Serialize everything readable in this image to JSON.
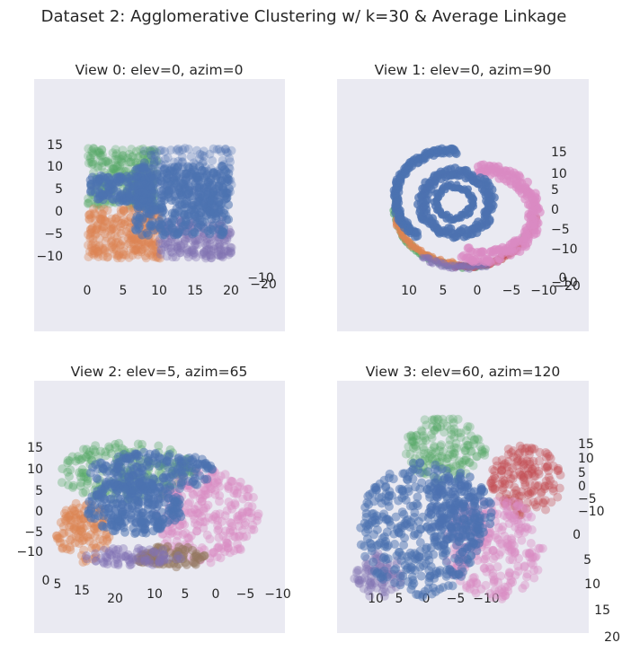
{
  "figure": {
    "title": "Dataset 2: Agglomerative Clustering w/ k=30 & Average Linkage"
  },
  "colors": {
    "panel_bg": "#eaeaf2",
    "text": "#262626",
    "cluster_blue": "#4c72b0",
    "cluster_orange": "#dd8452",
    "cluster_green": "#55a868",
    "cluster_red": "#c44e52",
    "cluster_purple": "#8172b3",
    "cluster_brown": "#937860",
    "cluster_pink": "#da8bc3"
  },
  "chart_data": [
    {
      "type": "scatter",
      "title": "View 0: elev=0, azim=0",
      "view": {
        "elev": 0,
        "azim": 0
      },
      "axis_tick_labels": {
        "vertical": [
          "15",
          "10",
          "5",
          "0",
          "−5",
          "−10"
        ],
        "horizontal": [
          "0",
          "5",
          "10",
          "15",
          "20"
        ],
        "depth": [
          "−10",
          "−20"
        ]
      }
    },
    {
      "type": "scatter",
      "title": "View 1: elev=0, azim=90",
      "view": {
        "elev": 0,
        "azim": 90
      },
      "axis_tick_labels": {
        "vertical": [
          "15",
          "10",
          "5",
          "0",
          "−5",
          "−10"
        ],
        "horizontal": [
          "10",
          "5",
          "0",
          "−5",
          "−10"
        ],
        "depth": [
          "0",
          "−10",
          "−20"
        ]
      }
    },
    {
      "type": "scatter",
      "title": "View 2: elev=5, azim=65",
      "view": {
        "elev": 5,
        "azim": 65
      },
      "axis_tick_labels": {
        "vertical": [
          "15",
          "10",
          "5",
          "0",
          "−5",
          "−10"
        ],
        "horizontal": [
          "10",
          "5",
          "0",
          "−5",
          "−10"
        ],
        "depth": [
          "0",
          "5",
          "15",
          "20"
        ]
      }
    },
    {
      "type": "scatter",
      "title": "View 3: elev=60, azim=120",
      "view": {
        "elev": 60,
        "azim": 120
      },
      "axis_tick_labels": {
        "vertical": [
          "15",
          "10",
          "5",
          "0",
          "−5",
          "−10"
        ],
        "horizontal": [
          "10",
          "5",
          "0",
          "−5",
          "−10"
        ],
        "depth": [
          "0",
          "5",
          "10",
          "15",
          "20"
        ]
      }
    }
  ]
}
